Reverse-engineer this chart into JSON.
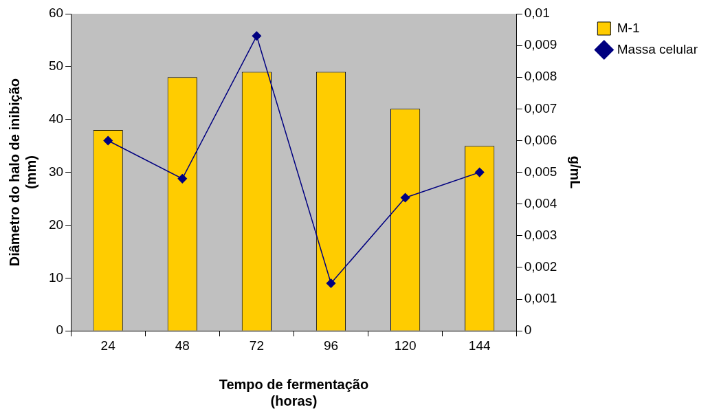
{
  "chart_data": {
    "type": "bar",
    "xlabel": "Tempo de fermentação\n(horas)",
    "ylabel": "Diâmetro do halo de inibição\n(mm)",
    "y2label": "g/mL",
    "categories": [
      "24",
      "48",
      "72",
      "96",
      "120",
      "144"
    ],
    "series": [
      {
        "name": "M-1",
        "color": "#ffcc00",
        "values": [
          38,
          48,
          49,
          49,
          42,
          35
        ]
      },
      {
        "name": "Massa celular",
        "type": "line",
        "axis": "y2",
        "color": "#000080",
        "marker": "diamond",
        "values": [
          0.006,
          0.0048,
          0.0093,
          0.0015,
          0.0042,
          0.005
        ]
      }
    ],
    "ylim": [
      0,
      60
    ],
    "yticks": [
      0,
      10,
      20,
      30,
      40,
      50,
      60
    ],
    "y2lim": [
      0,
      0.01
    ],
    "y2ticks": [
      {
        "value": 0,
        "label": "0"
      },
      {
        "value": 0.001,
        "label": "0,001"
      },
      {
        "value": 0.002,
        "label": "0,002"
      },
      {
        "value": 0.003,
        "label": "0,003"
      },
      {
        "value": 0.004,
        "label": "0,004"
      },
      {
        "value": 0.005,
        "label": "0,005"
      },
      {
        "value": 0.006,
        "label": "0,006"
      },
      {
        "value": 0.007,
        "label": "0,007"
      },
      {
        "value": 0.008,
        "label": "0,008"
      },
      {
        "value": 0.009,
        "label": "0,009"
      },
      {
        "value": 0.01,
        "label": "0,01"
      }
    ],
    "grid": false,
    "legend": "top right"
  }
}
